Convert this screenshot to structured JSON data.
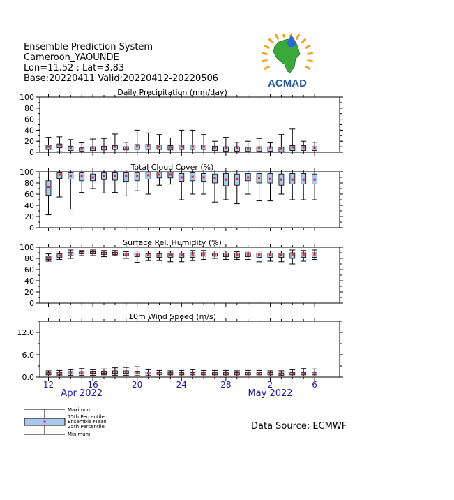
{
  "header": {
    "line1": "Ensemble Prediction System",
    "line2": "Cameroon_YAOUNDE",
    "line3": "Lon=11.52 : Lat=3.83",
    "line4": "Base:20220411 Valid:20220412-20220506"
  },
  "logo": {
    "text": "ACMAD",
    "icon": "acmad-africa-logo",
    "colors": {
      "africa": "#3aa83a",
      "text": "#2a5aa0",
      "rays": "#f0a020",
      "drop": "#2a6ad0"
    }
  },
  "source": "Data Source: ECMWF",
  "colors": {
    "box": "#a9c8ea",
    "mean": "#e0203a",
    "axis_text": "#1a1aa6"
  },
  "legend": {
    "labels": [
      "Maximum",
      "75th Percentile",
      "Ensemble Mean",
      "25th Percentile",
      "Minimum"
    ]
  },
  "chart_data": [
    {
      "type": "box",
      "title": "Daily Precipitation (mm/day)",
      "ylim": [
        0,
        100
      ],
      "yticks": [
        0,
        20,
        40,
        60,
        80,
        100
      ],
      "x": [
        "2022-04-12",
        "2022-04-13",
        "2022-04-14",
        "2022-04-15",
        "2022-04-16",
        "2022-04-17",
        "2022-04-18",
        "2022-04-19",
        "2022-04-20",
        "2022-04-21",
        "2022-04-22",
        "2022-04-23",
        "2022-04-24",
        "2022-04-25",
        "2022-04-26",
        "2022-04-27",
        "2022-04-28",
        "2022-04-29",
        "2022-04-30",
        "2022-05-01",
        "2022-05-02",
        "2022-05-03",
        "2022-05-04",
        "2022-05-05",
        "2022-05-06"
      ],
      "min": [
        0,
        1,
        0,
        0,
        0,
        0,
        0,
        0,
        0,
        0,
        0,
        0,
        0,
        0,
        0,
        0,
        0,
        0,
        0,
        0,
        0,
        0,
        0,
        0,
        0
      ],
      "q25": [
        5,
        8,
        3,
        2,
        3,
        4,
        5,
        4,
        5,
        5,
        5,
        4,
        5,
        5,
        5,
        3,
        2,
        2,
        2,
        2,
        2,
        1,
        3,
        3,
        3
      ],
      "mean": [
        10,
        13,
        8,
        6,
        8,
        9,
        10,
        8,
        11,
        11,
        10,
        9,
        10,
        10,
        10,
        8,
        7,
        7,
        6,
        7,
        7,
        6,
        9,
        9,
        8
      ],
      "q75": [
        13,
        15,
        11,
        8,
        10,
        11,
        12,
        10,
        14,
        14,
        13,
        12,
        13,
        13,
        13,
        11,
        10,
        10,
        9,
        10,
        10,
        9,
        12,
        12,
        10
      ],
      "max": [
        27,
        28,
        23,
        17,
        24,
        25,
        33,
        18,
        40,
        35,
        32,
        26,
        40,
        40,
        32,
        20,
        27,
        18,
        20,
        25,
        17,
        32,
        42,
        20,
        18
      ]
    },
    {
      "type": "box",
      "title": "Total Cloud Cover (%)",
      "ylim": [
        0,
        100
      ],
      "yticks": [
        0,
        20,
        40,
        60,
        80,
        100
      ],
      "x": [
        "2022-04-12",
        "2022-04-13",
        "2022-04-14",
        "2022-04-15",
        "2022-04-16",
        "2022-04-17",
        "2022-04-18",
        "2022-04-19",
        "2022-04-20",
        "2022-04-21",
        "2022-04-22",
        "2022-04-23",
        "2022-04-24",
        "2022-04-25",
        "2022-04-26",
        "2022-04-27",
        "2022-04-28",
        "2022-04-29",
        "2022-04-30",
        "2022-05-01",
        "2022-05-02",
        "2022-05-03",
        "2022-05-04",
        "2022-05-05",
        "2022-05-06"
      ],
      "min": [
        23,
        55,
        33,
        63,
        70,
        62,
        63,
        57,
        66,
        60,
        76,
        78,
        50,
        60,
        60,
        46,
        50,
        43,
        60,
        48,
        48,
        60,
        50,
        50,
        50
      ],
      "q25": [
        58,
        88,
        87,
        84,
        84,
        86,
        85,
        83,
        84,
        87,
        89,
        89,
        83,
        84,
        83,
        80,
        75,
        76,
        84,
        80,
        80,
        76,
        78,
        78,
        78
      ],
      "mean": [
        73,
        95,
        92,
        92,
        90,
        93,
        93,
        92,
        93,
        94,
        95,
        95,
        90,
        91,
        90,
        88,
        86,
        87,
        90,
        88,
        87,
        86,
        86,
        86,
        86
      ],
      "q75": [
        84,
        98,
        98,
        98,
        96,
        98,
        98,
        98,
        98,
        99,
        99,
        99,
        97,
        98,
        97,
        96,
        97,
        96,
        97,
        97,
        97,
        96,
        97,
        97,
        96
      ],
      "max": [
        100,
        100,
        100,
        100,
        100,
        100,
        100,
        100,
        100,
        100,
        100,
        100,
        100,
        100,
        100,
        100,
        100,
        100,
        100,
        100,
        100,
        100,
        100,
        100,
        100
      ]
    },
    {
      "type": "box",
      "title": "Surface Rel. Humidity (%)",
      "ylim": [
        0,
        100
      ],
      "yticks": [
        0,
        20,
        40,
        60,
        80,
        100
      ],
      "x": [
        "2022-04-12",
        "2022-04-13",
        "2022-04-14",
        "2022-04-15",
        "2022-04-16",
        "2022-04-17",
        "2022-04-18",
        "2022-04-19",
        "2022-04-20",
        "2022-04-21",
        "2022-04-22",
        "2022-04-23",
        "2022-04-24",
        "2022-04-25",
        "2022-04-26",
        "2022-04-27",
        "2022-04-28",
        "2022-04-29",
        "2022-04-30",
        "2022-05-01",
        "2022-05-02",
        "2022-05-03",
        "2022-05-04",
        "2022-05-05",
        "2022-05-06"
      ],
      "min": [
        75,
        78,
        80,
        85,
        85,
        83,
        85,
        80,
        73,
        76,
        76,
        74,
        74,
        76,
        78,
        80,
        78,
        78,
        78,
        74,
        75,
        74,
        70,
        75,
        78
      ],
      "q25": [
        78,
        82,
        85,
        88,
        88,
        87,
        87,
        85,
        83,
        82,
        82,
        82,
        82,
        82,
        84,
        84,
        83,
        82,
        83,
        82,
        82,
        82,
        80,
        82,
        82
      ],
      "mean": [
        81,
        85,
        88,
        90,
        90,
        89,
        89,
        87,
        86,
        86,
        85,
        86,
        86,
        87,
        87,
        87,
        86,
        86,
        87,
        86,
        86,
        86,
        87,
        87,
        87
      ],
      "q75": [
        84,
        88,
        91,
        92,
        92,
        91,
        91,
        89,
        89,
        88,
        88,
        89,
        89,
        90,
        90,
        89,
        89,
        89,
        90,
        89,
        89,
        89,
        90,
        90,
        90
      ],
      "max": [
        88,
        93,
        95,
        94,
        95,
        94,
        94,
        92,
        93,
        93,
        93,
        93,
        93,
        94,
        94,
        93,
        93,
        92,
        93,
        93,
        93,
        93,
        95,
        94,
        95
      ]
    },
    {
      "type": "box",
      "title": "10m Wind Speed (m/s)",
      "ylim": [
        0,
        15
      ],
      "yticks": [
        0.0,
        6.0,
        12.0
      ],
      "ytick_labels": [
        "0.0",
        "6.0",
        "12.0"
      ],
      "x": [
        "2022-04-12",
        "2022-04-13",
        "2022-04-14",
        "2022-04-15",
        "2022-04-16",
        "2022-04-17",
        "2022-04-18",
        "2022-04-19",
        "2022-04-20",
        "2022-04-21",
        "2022-04-22",
        "2022-04-23",
        "2022-04-24",
        "2022-04-25",
        "2022-04-26",
        "2022-04-27",
        "2022-04-28",
        "2022-04-29",
        "2022-04-30",
        "2022-05-01",
        "2022-05-02",
        "2022-05-03",
        "2022-05-04",
        "2022-05-05",
        "2022-05-06"
      ],
      "min": [
        0.3,
        0.4,
        0.5,
        0.5,
        0.5,
        0.6,
        0.5,
        0.5,
        0.4,
        0.4,
        0.3,
        0.3,
        0.3,
        0.3,
        0.3,
        0.3,
        0.3,
        0.3,
        0.3,
        0.3,
        0.3,
        0.3,
        0.3,
        0.3,
        0.3
      ],
      "q25": [
        0.6,
        0.7,
        0.9,
        0.9,
        1.0,
        1.0,
        1.0,
        1.0,
        0.9,
        0.8,
        0.7,
        0.6,
        0.6,
        0.6,
        0.6,
        0.6,
        0.6,
        0.6,
        0.6,
        0.6,
        0.6,
        0.5,
        0.6,
        0.6,
        0.6
      ],
      "mean": [
        0.9,
        1.0,
        1.2,
        1.2,
        1.3,
        1.3,
        1.4,
        1.4,
        1.3,
        1.1,
        1.0,
        0.9,
        0.9,
        0.9,
        0.9,
        0.9,
        0.9,
        0.9,
        0.9,
        0.9,
        0.9,
        0.8,
        0.9,
        0.9,
        1.0
      ],
      "q75": [
        1.2,
        1.3,
        1.5,
        1.5,
        1.6,
        1.6,
        1.7,
        1.7,
        1.6,
        1.4,
        1.3,
        1.2,
        1.2,
        1.2,
        1.2,
        1.2,
        1.2,
        1.2,
        1.2,
        1.2,
        1.2,
        1.1,
        1.2,
        1.2,
        1.3
      ],
      "max": [
        1.7,
        1.8,
        2.0,
        2.3,
        2.0,
        2.2,
        2.5,
        2.6,
        2.8,
        2.0,
        1.8,
        1.7,
        1.8,
        2.0,
        1.8,
        1.8,
        1.8,
        1.7,
        1.8,
        1.8,
        1.7,
        1.7,
        2.0,
        2.3,
        2.2
      ]
    }
  ],
  "x_axis": {
    "tick_labels": [
      "12",
      "16",
      "20",
      "24",
      "28",
      "2",
      "6"
    ],
    "tick_index": [
      0,
      4,
      8,
      12,
      16,
      20,
      24
    ],
    "months": [
      {
        "label": "Apr 2022",
        "at_index": 3
      },
      {
        "label": "May 2022",
        "at_index": 20
      }
    ]
  }
}
